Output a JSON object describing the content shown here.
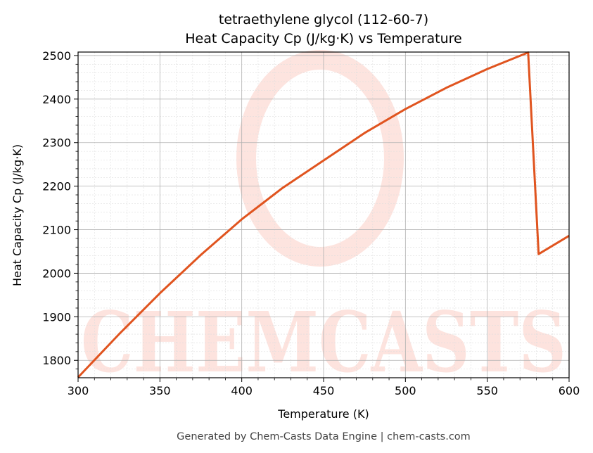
{
  "chart_data": {
    "type": "line",
    "title": "tetraethylene glycol (112-60-7)",
    "subtitle": "Heat Capacity Cp (J/kg·K) vs Temperature",
    "xlabel": "Temperature (K)",
    "ylabel": "Heat Capacity Cp (J/kg·K)",
    "xlim": [
      300,
      600
    ],
    "ylim": [
      1760,
      2508
    ],
    "xticks": [
      300,
      350,
      400,
      450,
      500,
      550,
      600
    ],
    "yticks": [
      1800,
      1900,
      2000,
      2100,
      2200,
      2300,
      2400,
      2500
    ],
    "grid": true,
    "color": "#e0541f",
    "series": [
      {
        "x": [
          300,
          325,
          350,
          375,
          400,
          425,
          450,
          475,
          500,
          525,
          550,
          575,
          581.4,
          600
        ],
        "y": [
          1761,
          1860,
          1954,
          2042,
          2124,
          2196,
          2259,
          2322,
          2377,
          2426,
          2469,
          2507,
          2044,
          2086
        ]
      }
    ]
  },
  "footer": "Generated by Chem-Casts Data Engine | chem-casts.com",
  "watermark": "CHEMCASTS"
}
